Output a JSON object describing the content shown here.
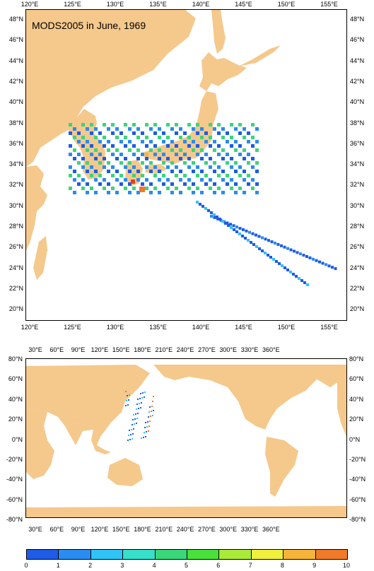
{
  "top_map": {
    "title": "MODS2005 in June, 1969",
    "lon_labels": [
      "120°E",
      "125°E",
      "130°E",
      "135°E",
      "140°E",
      "145°E",
      "150°E",
      "155°E"
    ],
    "lat_labels": [
      "48°N",
      "46°N",
      "44°N",
      "42°N",
      "40°N",
      "38°N",
      "36°N",
      "34°N",
      "32°N",
      "30°N",
      "28°N",
      "26°N",
      "24°N",
      "22°N",
      "20°N"
    ]
  },
  "bottom_map": {
    "lon_labels": [
      "30°E",
      "60°E",
      "90°E",
      "120°E",
      "150°E",
      "180°E",
      "210°E",
      "240°E",
      "270°E",
      "300°E",
      "330°E",
      "360°E"
    ],
    "lat_labels": [
      "80°N",
      "60°N",
      "40°N",
      "20°N",
      "0°N",
      "-20°N",
      "-40°N",
      "-60°N",
      "-80°N"
    ]
  },
  "colorbar": {
    "labels": [
      "0",
      "1",
      "2",
      "3",
      "4",
      "5",
      "6",
      "7",
      "8",
      "9",
      "10"
    ],
    "colors": [
      "#1e5be6",
      "#2a8cf0",
      "#2fc4f5",
      "#37e0c8",
      "#3ad67a",
      "#49e03c",
      "#a9ea3a",
      "#f0f03c",
      "#f6b43a",
      "#ef7a2a",
      "#e83c1e"
    ]
  },
  "colors": {
    "land": "#f5c88c",
    "ocean": "#ffffff",
    "border": "#000000"
  }
}
